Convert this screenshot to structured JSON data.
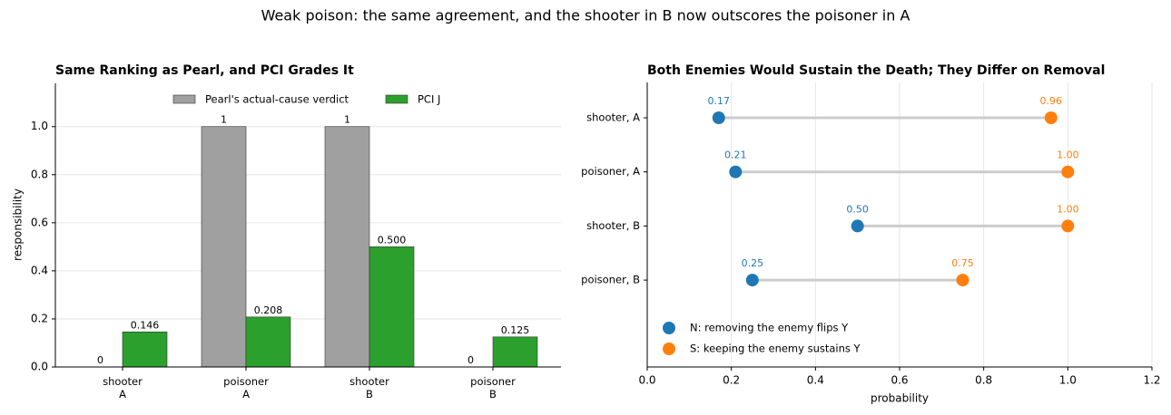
{
  "title": "Weak poison: the same agreement, and the shooter in B now outscores the poisoner in A",
  "chart_data": [
    {
      "type": "bar",
      "title": "Same Ranking as Pearl, and PCI Grades It",
      "y_label": "responsibility",
      "categories": [
        "shooter\nA",
        "poisoner\nA",
        "shooter\nB",
        "poisoner\nB"
      ],
      "series": [
        {
          "name": "Pearl's actual-cause verdict",
          "color": "#a0a0a0",
          "values": [
            0,
            1,
            1,
            0
          ]
        },
        {
          "name": "PCI J",
          "color": "#2ca02c",
          "values": [
            0.146,
            0.208,
            0.5,
            0.125
          ],
          "value_labels": [
            "0.146",
            "0.208",
            "0.500",
            "0.125"
          ]
        }
      ],
      "ylim": [
        0,
        1.18
      ],
      "yticks": [
        {
          "value": 0,
          "label": "0.0"
        },
        0.2,
        0.4,
        0.6,
        0.8,
        {
          "value": 1,
          "label": "1.0"
        }
      ],
      "grid": true,
      "legend": "upper-center"
    },
    {
      "type": "dumbbell",
      "title": "Both Enemies Would Sustain the Death; They Differ on Removal",
      "x_label": "probability",
      "categories": [
        "shooter, A",
        "poisoner, A",
        "shooter, B",
        "poisoner, B"
      ],
      "series": [
        {
          "name": "N: removing the enemy flips Y",
          "color": "#1f77b4",
          "values": [
            0.17,
            0.21,
            0.5,
            0.25
          ],
          "value_labels": [
            "0.17",
            "0.21",
            "0.50",
            "0.25"
          ]
        },
        {
          "name": "S: keeping the enemy sustains Y",
          "color": "#ff7f0e",
          "values": [
            0.96,
            1,
            1,
            0.75
          ],
          "value_labels": [
            "0.96",
            "1.00",
            "1.00",
            "0.75"
          ]
        }
      ],
      "xlim": [
        0,
        1.2
      ],
      "xticks": [
        {
          "value": 0,
          "label": "0.0"
        },
        0.2,
        0.4,
        0.6,
        0.8,
        {
          "value": 1,
          "label": "1.0"
        },
        1.2
      ],
      "grid": true,
      "legend": "lower-left"
    }
  ]
}
